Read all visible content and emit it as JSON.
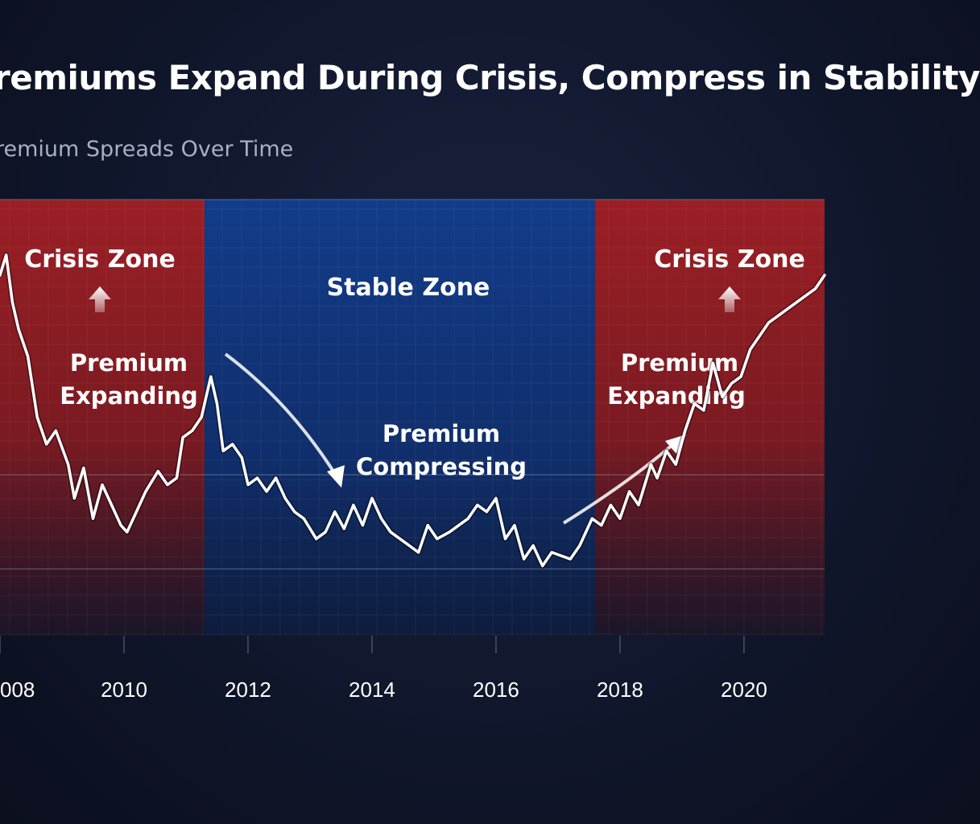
{
  "title": "remiums Expand During Crisis, Compress in Stability",
  "subtitle": "remium Spreads Over Time",
  "chart_data": {
    "type": "line",
    "title": "remiums Expand During Crisis, Compress in Stability",
    "subtitle": "remium Spreads Over Time",
    "xlabel": "",
    "ylabel": "",
    "xlim": [
      2008,
      2021.3
    ],
    "ylim": [
      0,
      100
    ],
    "x_ticks": [
      "008",
      "2010",
      "2012",
      "2014",
      "2016",
      "2018",
      "2020"
    ],
    "x_tick_values": [
      2008,
      2010,
      2012,
      2014,
      2016,
      2018,
      2020
    ],
    "grid": true,
    "zones": [
      {
        "label": "Crisis Zone",
        "kind": "crisis",
        "start": 2008,
        "end": 2011.3,
        "note_line1": "Premium",
        "note_line2": "Expanding",
        "arrow": "up"
      },
      {
        "label": "Stable Zone",
        "kind": "stable",
        "start": 2011.3,
        "end": 2017.6,
        "note_line1": "Premium",
        "note_line2": "Compressing",
        "arrow": "down-right"
      },
      {
        "label": "Crisis Zone",
        "kind": "crisis",
        "start": 2017.6,
        "end": 2021.3,
        "note_line1": "Premium",
        "note_line2": "Expanding",
        "arrow": "up-right"
      }
    ],
    "series": [
      {
        "x": [
          2008.0,
          2008.1,
          2008.2,
          2008.3,
          2008.45,
          2008.6,
          2008.75,
          2008.9,
          2009.1,
          2009.2,
          2009.35,
          2009.5,
          2009.65,
          2009.8,
          2009.95,
          2010.05,
          2010.2,
          2010.35,
          2010.55,
          2010.7,
          2010.85,
          2010.95,
          2011.1,
          2011.25,
          2011.4,
          2011.5,
          2011.6,
          2011.75,
          2011.9,
          2012.0,
          2012.15,
          2012.3,
          2012.45,
          2012.6,
          2012.75,
          2012.9,
          2013.1,
          2013.25,
          2013.4,
          2013.55,
          2013.7,
          2013.85,
          2014.0,
          2014.15,
          2014.3,
          2014.45,
          2014.6,
          2014.75,
          2014.9,
          2015.05,
          2015.25,
          2015.4,
          2015.55,
          2015.7,
          2015.85,
          2016.0,
          2016.15,
          2016.3,
          2016.45,
          2016.6,
          2016.75,
          2016.9,
          2017.05,
          2017.2,
          2017.35,
          2017.55,
          2017.7,
          2017.85,
          2018.0,
          2018.15,
          2018.3,
          2018.5,
          2018.6,
          2018.75,
          2018.9,
          2019.05,
          2019.2,
          2019.35,
          2019.5,
          2019.65,
          2019.8,
          2019.95,
          2020.1,
          2020.25,
          2020.4,
          2020.55,
          2020.7,
          2020.85,
          2021.0,
          2021.15,
          2021.3
        ],
        "values": [
          90,
          96,
          82,
          74,
          66,
          48,
          40,
          44,
          34,
          24,
          33,
          18,
          28,
          22,
          16,
          14,
          20,
          26,
          32,
          28,
          30,
          42,
          44,
          48,
          60,
          52,
          38,
          40,
          36,
          28,
          30,
          26,
          30,
          24,
          20,
          18,
          12,
          14,
          20,
          15,
          22,
          16,
          24,
          18,
          14,
          12,
          10,
          8,
          16,
          12,
          14,
          16,
          18,
          22,
          20,
          24,
          12,
          16,
          6,
          10,
          4,
          8,
          7,
          6,
          10,
          18,
          16,
          22,
          18,
          26,
          22,
          34,
          30,
          38,
          34,
          44,
          52,
          50,
          64,
          54,
          58,
          60,
          68,
          72,
          76,
          78,
          80,
          82,
          84,
          86,
          90
        ]
      }
    ]
  }
}
